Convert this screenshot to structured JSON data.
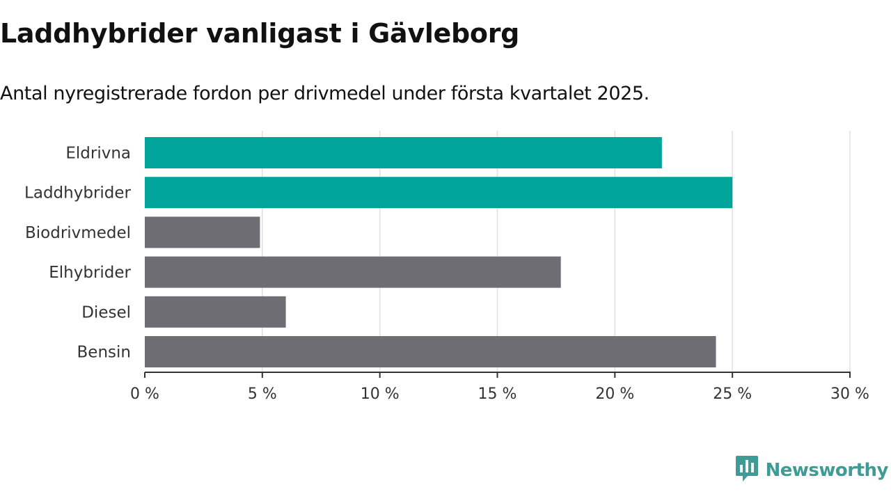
{
  "header": {
    "title": "Laddhybrider vanligast i Gävleborg",
    "subtitle": "Antal nyregistrerade fordon per drivmedel under första kvartalet 2025."
  },
  "brand": {
    "name": "Newsworthy",
    "icon": "newsworthy-logo-icon",
    "color": "#3f9b96"
  },
  "chart_data": {
    "type": "bar",
    "orientation": "horizontal",
    "title": "Laddhybrider vanligast i Gävleborg",
    "subtitle": "Antal nyregistrerade fordon per drivmedel under första kvartalet 2025.",
    "xlabel": "",
    "ylabel": "",
    "categories": [
      "Eldrivna",
      "Laddhybrider",
      "Biodrivmedel",
      "Elhybrider",
      "Diesel",
      "Bensin"
    ],
    "values": [
      22.0,
      25.0,
      4.9,
      17.7,
      6.0,
      24.3
    ],
    "bar_colors": [
      "#00a49a",
      "#00a49a",
      "#6d6d73",
      "#6d6d73",
      "#6d6d73",
      "#6d6d73"
    ],
    "xlim": [
      0,
      30
    ],
    "x_ticks": [
      0,
      5,
      10,
      15,
      20,
      25,
      30
    ],
    "x_tick_labels": [
      "0 %",
      "5 %",
      "10 %",
      "15 %",
      "20 %",
      "25 %",
      "30 %"
    ],
    "grid": true,
    "legend": "none"
  }
}
